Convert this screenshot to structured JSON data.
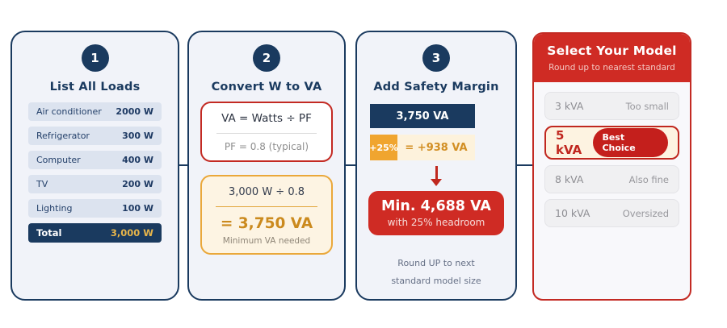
{
  "colors": {
    "navy": "#1a3a5f",
    "red": "#cf2b24",
    "amber": "#f0a52f",
    "gold_text": "#cb8a1e",
    "cream": "#fdf4e3",
    "card_bg": "#f1f3f9"
  },
  "steps": [
    {
      "number": "1",
      "title": "List All Loads",
      "rows": [
        {
          "label": "Air conditioner",
          "value": "2000 W"
        },
        {
          "label": "Refrigerator",
          "value": "300 W"
        },
        {
          "label": "Computer",
          "value": "400 W"
        },
        {
          "label": "TV",
          "value": "200 W"
        },
        {
          "label": "Lighting",
          "value": "100 W"
        }
      ],
      "total": {
        "label": "Total",
        "value": "3,000 W"
      }
    },
    {
      "number": "2",
      "title": "Convert W to VA",
      "formula_box": {
        "formula": "VA = Watts ÷ PF",
        "note": "PF = 0.8  (typical)"
      },
      "calc_box": {
        "expression": "3,000 W ÷ 0.8",
        "result": "= 3,750 VA",
        "caption": "Minimum VA needed"
      }
    },
    {
      "number": "3",
      "title": "Add Safety Margin",
      "base_value": "3,750 VA",
      "margin_badge": "+25%",
      "margin_value": "= +938 VA",
      "result_title": "Min. 4,688 VA",
      "result_subtitle": "with 25% headroom",
      "footnote_line1": "Round UP to next",
      "footnote_line2": "standard model size"
    }
  ],
  "model_panel": {
    "title": "Select Your Model",
    "subtitle": "Round up to nearest standard",
    "options": [
      {
        "label": "3 kVA",
        "note": "Too small"
      },
      {
        "label": "5 kVA",
        "note": "Best Choice"
      },
      {
        "label": "8 kVA",
        "note": "Also fine"
      },
      {
        "label": "10 kVA",
        "note": "Oversized"
      }
    ]
  }
}
